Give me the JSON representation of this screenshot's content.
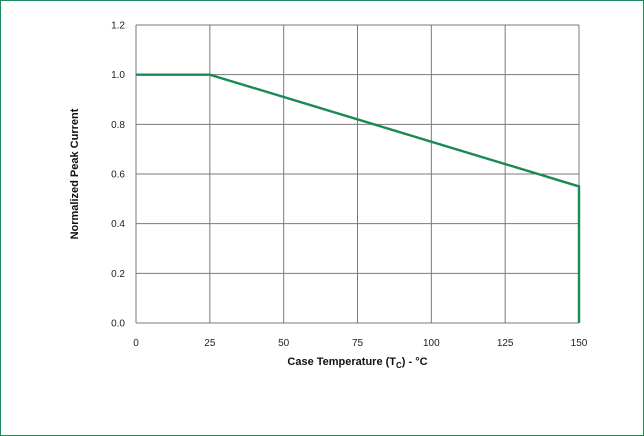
{
  "chart_data": {
    "type": "line",
    "title": "",
    "xlabel": {
      "main": "Case Temperature (T",
      "sub": "C",
      "suffix": ") - °C"
    },
    "ylabel": "Normalized Peak Current",
    "xlim": [
      0,
      150
    ],
    "ylim": [
      0,
      1.2
    ],
    "xticks": [
      "0",
      "25",
      "50",
      "75",
      "100",
      "125",
      "150"
    ],
    "yticks": [
      "0.0",
      "0.2",
      "0.4",
      "0.6",
      "0.8",
      "1.0",
      "1.2"
    ],
    "grid": true,
    "series": [
      {
        "color": "#1a8a55",
        "points": [
          [
            0,
            1.0
          ],
          [
            25,
            1.0
          ],
          [
            150,
            0.55
          ],
          [
            150,
            0.0
          ]
        ]
      }
    ]
  }
}
